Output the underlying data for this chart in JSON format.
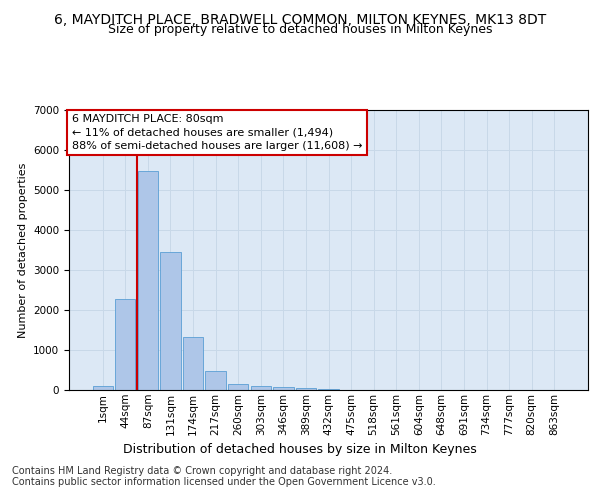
{
  "title": "6, MAYDITCH PLACE, BRADWELL COMMON, MILTON KEYNES, MK13 8DT",
  "subtitle": "Size of property relative to detached houses in Milton Keynes",
  "xlabel": "Distribution of detached houses by size in Milton Keynes",
  "ylabel": "Number of detached properties",
  "footer_line1": "Contains HM Land Registry data © Crown copyright and database right 2024.",
  "footer_line2": "Contains public sector information licensed under the Open Government Licence v3.0.",
  "bar_labels": [
    "1sqm",
    "44sqm",
    "87sqm",
    "131sqm",
    "174sqm",
    "217sqm",
    "260sqm",
    "303sqm",
    "346sqm",
    "389sqm",
    "432sqm",
    "475sqm",
    "518sqm",
    "561sqm",
    "604sqm",
    "648sqm",
    "691sqm",
    "734sqm",
    "777sqm",
    "820sqm",
    "863sqm"
  ],
  "bar_values": [
    90,
    2280,
    5480,
    3460,
    1330,
    480,
    160,
    105,
    75,
    50,
    25,
    0,
    0,
    0,
    0,
    0,
    0,
    0,
    0,
    0,
    0
  ],
  "bar_color": "#aec6e8",
  "bar_edge_color": "#5a9fd4",
  "annotation_line1": "6 MAYDITCH PLACE: 80sqm",
  "annotation_line2": "← 11% of detached houses are smaller (1,494)",
  "annotation_line3": "88% of semi-detached houses are larger (11,608) →",
  "vline_x": 1.5,
  "vline_color": "#cc0000",
  "annotation_box_color": "#ffffff",
  "annotation_box_edge": "#cc0000",
  "grid_color": "#c8d8e8",
  "bg_color": "#dce8f5",
  "ylim": [
    0,
    7000
  ],
  "yticks": [
    0,
    1000,
    2000,
    3000,
    4000,
    5000,
    6000,
    7000
  ],
  "title_fontsize": 10,
  "subtitle_fontsize": 9,
  "xlabel_fontsize": 9,
  "ylabel_fontsize": 8,
  "tick_fontsize": 7.5,
  "annotation_fontsize": 8,
  "footer_fontsize": 7
}
